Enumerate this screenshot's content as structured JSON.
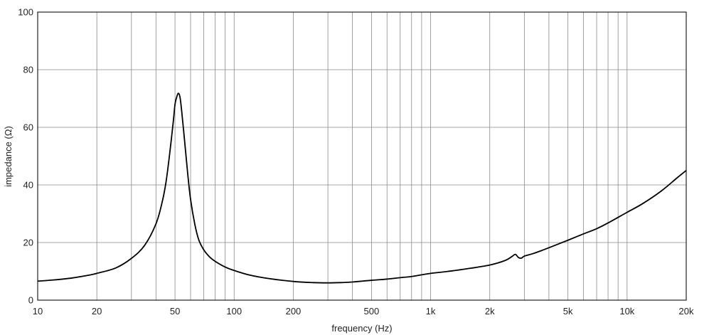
{
  "chart_data": {
    "type": "line",
    "title": "",
    "xlabel": "frequency (Hz)",
    "ylabel": "impedance (Ω)",
    "x_scale": "log",
    "xlim": [
      10,
      20000
    ],
    "ylim": [
      0,
      100
    ],
    "grid": true,
    "x_ticks": [
      {
        "value": 10,
        "label": "10"
      },
      {
        "value": 20,
        "label": "20"
      },
      {
        "value": 50,
        "label": "50"
      },
      {
        "value": 100,
        "label": "100"
      },
      {
        "value": 200,
        "label": "200"
      },
      {
        "value": 500,
        "label": "500"
      },
      {
        "value": 1000,
        "label": "1k"
      },
      {
        "value": 2000,
        "label": "2k"
      },
      {
        "value": 5000,
        "label": "5k"
      },
      {
        "value": 10000,
        "label": "10k"
      },
      {
        "value": 20000,
        "label": "20k"
      }
    ],
    "y_ticks": [
      {
        "value": 0,
        "label": "0"
      },
      {
        "value": 20,
        "label": "20"
      },
      {
        "value": 40,
        "label": "40"
      },
      {
        "value": 60,
        "label": "60"
      },
      {
        "value": 80,
        "label": "80"
      },
      {
        "value": 100,
        "label": "100"
      }
    ],
    "x_gridlines": [
      20,
      30,
      40,
      50,
      60,
      70,
      80,
      90,
      100,
      200,
      300,
      400,
      500,
      600,
      700,
      800,
      900,
      1000,
      2000,
      3000,
      4000,
      5000,
      6000,
      7000,
      8000,
      9000,
      10000
    ],
    "y_gridlines": [
      20,
      40,
      60,
      80
    ],
    "series": [
      {
        "color": "#000000",
        "points": [
          [
            10,
            6.6
          ],
          [
            12,
            7.0
          ],
          [
            15,
            7.7
          ],
          [
            18,
            8.6
          ],
          [
            20,
            9.3
          ],
          [
            25,
            11.2
          ],
          [
            30,
            14.5
          ],
          [
            35,
            19.0
          ],
          [
            40,
            26.5
          ],
          [
            43,
            34.0
          ],
          [
            45,
            41.0
          ],
          [
            47,
            51.0
          ],
          [
            49,
            62.0
          ],
          [
            50,
            68.0
          ],
          [
            51,
            70.5
          ],
          [
            52,
            71.8
          ],
          [
            53,
            70.5
          ],
          [
            54,
            66.0
          ],
          [
            56,
            55.0
          ],
          [
            58,
            44.0
          ],
          [
            60,
            35.0
          ],
          [
            63,
            26.5
          ],
          [
            66,
            21.0
          ],
          [
            70,
            17.5
          ],
          [
            75,
            15.0
          ],
          [
            80,
            13.5
          ],
          [
            90,
            11.5
          ],
          [
            100,
            10.3
          ],
          [
            120,
            8.7
          ],
          [
            150,
            7.5
          ],
          [
            200,
            6.5
          ],
          [
            250,
            6.1
          ],
          [
            300,
            6.0
          ],
          [
            350,
            6.1
          ],
          [
            400,
            6.3
          ],
          [
            500,
            6.9
          ],
          [
            600,
            7.3
          ],
          [
            700,
            7.8
          ],
          [
            800,
            8.2
          ],
          [
            900,
            8.8
          ],
          [
            1000,
            9.3
          ],
          [
            1200,
            9.9
          ],
          [
            1500,
            10.8
          ],
          [
            2000,
            12.2
          ],
          [
            2400,
            13.8
          ],
          [
            2600,
            15.2
          ],
          [
            2700,
            15.9
          ],
          [
            2800,
            14.8
          ],
          [
            2900,
            14.6
          ],
          [
            3000,
            15.3
          ],
          [
            3300,
            16.1
          ],
          [
            3600,
            17.0
          ],
          [
            4000,
            18.2
          ],
          [
            5000,
            20.8
          ],
          [
            6000,
            23.0
          ],
          [
            7000,
            24.8
          ],
          [
            8000,
            26.8
          ],
          [
            10000,
            30.5
          ],
          [
            12000,
            33.5
          ],
          [
            15000,
            38.0
          ],
          [
            18000,
            42.5
          ],
          [
            20000,
            45.0
          ]
        ]
      }
    ]
  }
}
